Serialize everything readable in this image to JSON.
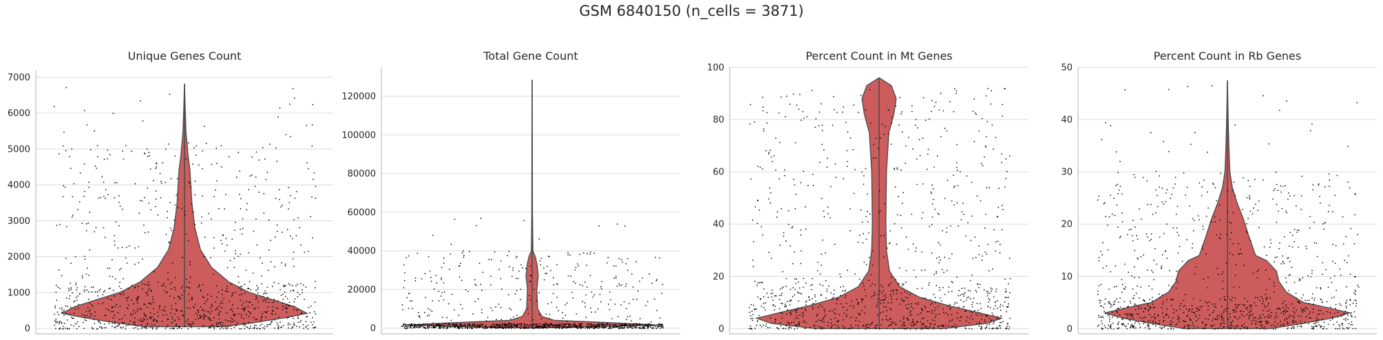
{
  "figure": {
    "title": "GSM 6840150 (n_cells = 3871)"
  },
  "colors": {
    "violin_fill": "#cd5c5c",
    "violin_edge": "#4d4d4d",
    "points": "#000000",
    "grid": "#d9d9d9",
    "axis": "#bfbfbf"
  },
  "chart_data": [
    {
      "type": "violin",
      "title": "Unique Genes Count",
      "xlabel": "",
      "ylabel": "",
      "ylim": [
        -150,
        7200
      ],
      "yticks": [
        0,
        1000,
        2000,
        3000,
        4000,
        5000,
        6000,
        7000
      ],
      "tick_labels": [
        "0",
        "1000",
        "2000",
        "3000",
        "4000",
        "5000",
        "6000",
        "7000"
      ],
      "grid": true,
      "max": 6820,
      "density_profile": [
        [
          50,
          0.32
        ],
        [
          150,
          0.55
        ],
        [
          300,
          0.82
        ],
        [
          420,
          1.0
        ],
        [
          600,
          0.9
        ],
        [
          800,
          0.72
        ],
        [
          1000,
          0.53
        ],
        [
          1300,
          0.36
        ],
        [
          1700,
          0.22
        ],
        [
          2200,
          0.13
        ],
        [
          2800,
          0.085
        ],
        [
          3500,
          0.06
        ],
        [
          4100,
          0.05
        ],
        [
          4400,
          0.045
        ],
        [
          4800,
          0.03
        ],
        [
          5500,
          0.012
        ],
        [
          6200,
          0.005
        ],
        [
          6820,
          0.0
        ]
      ],
      "scatter_range": [
        0,
        6800
      ]
    },
    {
      "type": "violin",
      "title": "Total Gene Count",
      "xlabel": "",
      "ylabel": "",
      "ylim": [
        -3000,
        135000
      ],
      "yticks": [
        0,
        20000,
        40000,
        60000,
        80000,
        100000,
        120000
      ],
      "tick_labels": [
        "0",
        "20000",
        "40000",
        "60000",
        "80000",
        "100000",
        "120000"
      ],
      "grid": true,
      "max": 128500,
      "density_profile": [
        [
          0,
          0.0
        ],
        [
          800,
          0.62
        ],
        [
          1600,
          1.0
        ],
        [
          2500,
          0.72
        ],
        [
          4000,
          0.18
        ],
        [
          6000,
          0.08
        ],
        [
          10000,
          0.045
        ],
        [
          20000,
          0.038
        ],
        [
          27000,
          0.05
        ],
        [
          33000,
          0.04
        ],
        [
          37000,
          0.025
        ],
        [
          40000,
          0.006
        ],
        [
          60000,
          0.003
        ],
        [
          128500,
          0.0
        ]
      ],
      "scatter_range": [
        0,
        128500
      ]
    },
    {
      "type": "violin",
      "title": "Percent Count in Mt Genes",
      "xlabel": "",
      "ylabel": "",
      "ylim": [
        -2,
        100
      ],
      "yticks": [
        0,
        20,
        40,
        60,
        80,
        100
      ],
      "tick_labels": [
        "0",
        "20",
        "40",
        "60",
        "80",
        "100"
      ],
      "grid": true,
      "max": 96,
      "density_profile": [
        [
          0,
          0.52
        ],
        [
          2,
          0.88
        ],
        [
          4,
          1.0
        ],
        [
          6,
          0.82
        ],
        [
          9,
          0.55
        ],
        [
          12,
          0.33
        ],
        [
          16,
          0.17
        ],
        [
          22,
          0.085
        ],
        [
          30,
          0.06
        ],
        [
          40,
          0.055
        ],
        [
          60,
          0.06
        ],
        [
          75,
          0.08
        ],
        [
          82,
          0.12
        ],
        [
          88,
          0.14
        ],
        [
          93,
          0.1
        ],
        [
          96,
          0.0
        ]
      ],
      "scatter_range": [
        0,
        96
      ]
    },
    {
      "type": "violin",
      "title": "Percent Count in Rb Genes",
      "xlabel": "",
      "ylabel": "",
      "ylim": [
        -1,
        50
      ],
      "yticks": [
        0,
        10,
        20,
        30,
        40,
        50
      ],
      "tick_labels": [
        "0",
        "10",
        "20",
        "30",
        "40",
        "50"
      ],
      "grid": true,
      "max": 47.5,
      "density_profile": [
        [
          0,
          0.35
        ],
        [
          1,
          0.62
        ],
        [
          2,
          0.85
        ],
        [
          3,
          1.0
        ],
        [
          4,
          0.82
        ],
        [
          5,
          0.62
        ],
        [
          7,
          0.48
        ],
        [
          9,
          0.42
        ],
        [
          11,
          0.4
        ],
        [
          13,
          0.32
        ],
        [
          14,
          0.23
        ],
        [
          16,
          0.2
        ],
        [
          18,
          0.17
        ],
        [
          21,
          0.13
        ],
        [
          24,
          0.08
        ],
        [
          27,
          0.04
        ],
        [
          30,
          0.02
        ],
        [
          35,
          0.012
        ],
        [
          40,
          0.006
        ],
        [
          47.5,
          0.0
        ]
      ],
      "scatter_range": [
        0,
        47.5
      ]
    }
  ]
}
